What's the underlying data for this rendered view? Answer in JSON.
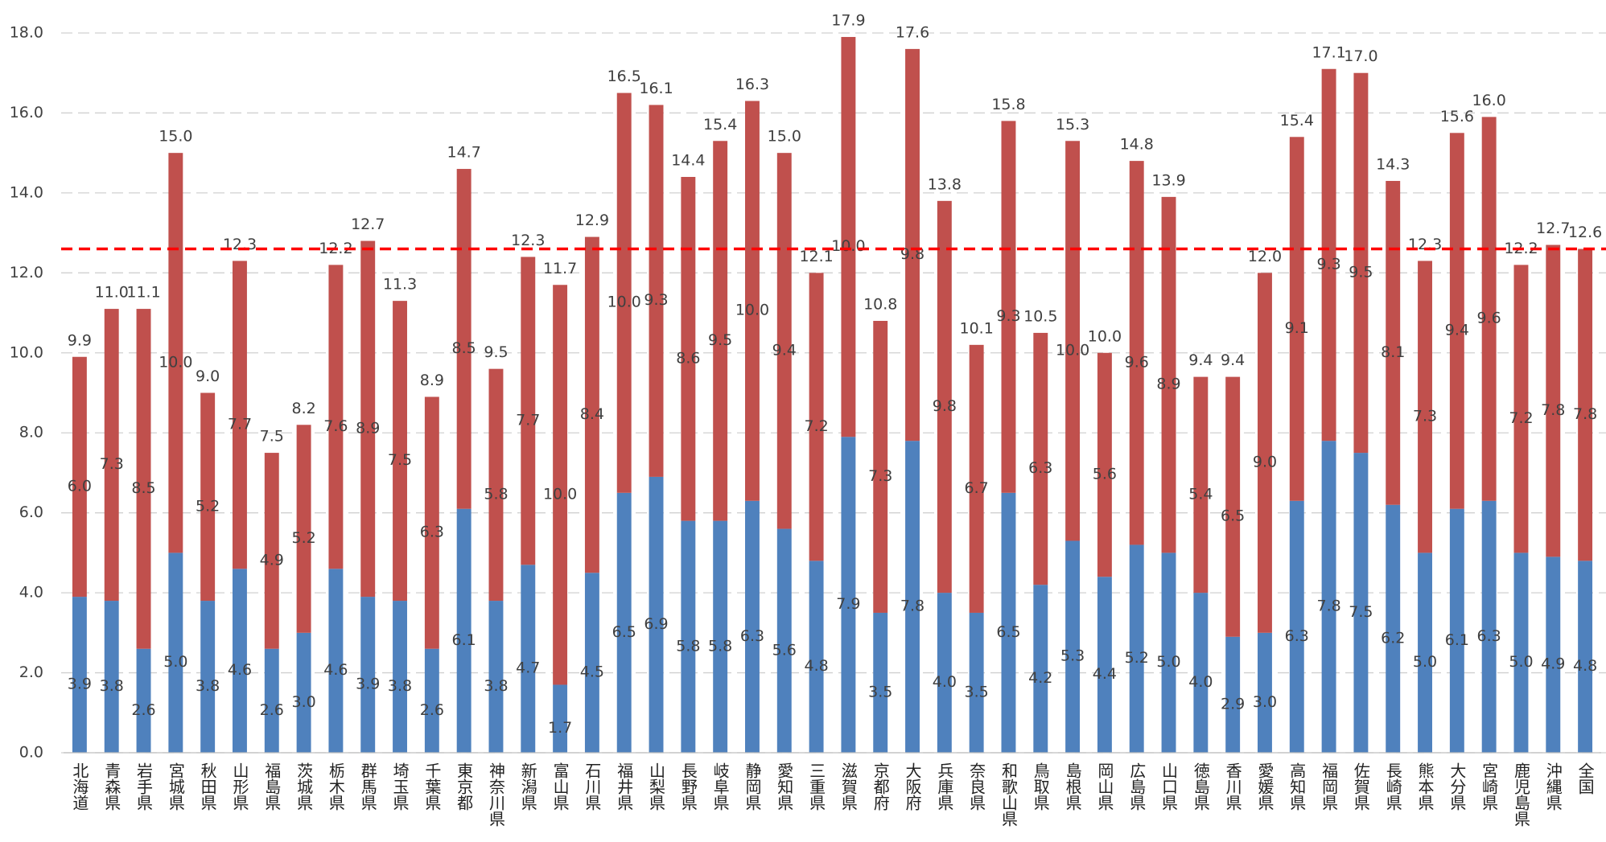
{
  "chart_data": {
    "type": "stacked_bar",
    "categories": [
      "北海道",
      "青森県",
      "岩手県",
      "宮城県",
      "秋田県",
      "山形県",
      "福島県",
      "茨城県",
      "栃木県",
      "群馬県",
      "埼玉県",
      "千葉県",
      "東京都",
      "神奈川県",
      "新潟県",
      "富山県",
      "石川県",
      "福井県",
      "山梨県",
      "長野県",
      "岐阜県",
      "静岡県",
      "愛知県",
      "三重県",
      "滋賀県",
      "京都府",
      "大阪府",
      "兵庫県",
      "奈良県",
      "和歌山県",
      "鳥取県",
      "島根県",
      "岡山県",
      "広島県",
      "山口県",
      "徳島県",
      "香川県",
      "愛媛県",
      "高知県",
      "福岡県",
      "佐賀県",
      "長崎県",
      "熊本県",
      "大分県",
      "宮崎県",
      "鹿児島県",
      "沖縄県",
      "全国"
    ],
    "series": [
      {
        "color": "#4f81bd",
        "values": [
          3.9,
          3.8,
          2.6,
          5.0,
          3.8,
          4.6,
          2.6,
          3.0,
          4.6,
          3.9,
          3.8,
          2.6,
          6.1,
          3.8,
          4.7,
          1.7,
          4.5,
          6.5,
          6.9,
          5.8,
          5.8,
          6.3,
          5.6,
          4.8,
          7.9,
          3.5,
          7.8,
          4.0,
          3.5,
          6.5,
          4.2,
          5.3,
          4.4,
          5.2,
          5.0,
          4.0,
          2.9,
          3.0,
          6.3,
          7.8,
          7.5,
          6.2,
          5.0,
          6.1,
          6.3,
          5.0,
          4.9,
          4.8
        ],
        "value_labels": [
          "3.9",
          "3.8",
          "2.6",
          "5.0",
          "3.8",
          "4.6",
          "2.6",
          "3.0",
          "4.6",
          "3.9",
          "3.8",
          "2.6",
          "6.1",
          "3.8",
          "4.7",
          "1.7",
          "4.5",
          "6.5",
          "6.9",
          "5.8",
          "5.8",
          "6.3",
          "5.6",
          "4.8",
          "7.9",
          "3.5",
          "7.8",
          "4.0",
          "3.5",
          "6.5",
          "4.2",
          "5.3",
          "4.4",
          "5.2",
          "5.0",
          "4.0",
          "2.9",
          "3.0",
          "6.3",
          "7.8",
          "7.5",
          "6.2",
          "5.0",
          "6.1",
          "6.3",
          "5.0",
          "4.9",
          "4.8"
        ]
      },
      {
        "color": "#c0504d",
        "values": [
          6.0,
          7.3,
          8.5,
          10.0,
          5.2,
          7.7,
          4.9,
          5.2,
          7.6,
          8.9,
          7.5,
          6.3,
          8.5,
          5.8,
          7.7,
          10.0,
          8.4,
          10.0,
          9.3,
          8.6,
          9.5,
          10.0,
          9.4,
          7.2,
          10.0,
          7.3,
          9.8,
          9.8,
          6.7,
          9.3,
          6.3,
          10.0,
          5.6,
          9.6,
          8.9,
          5.4,
          6.5,
          9.0,
          9.1,
          9.3,
          9.5,
          8.1,
          7.3,
          9.4,
          9.6,
          7.2,
          7.8,
          7.8
        ],
        "value_labels": [
          "6.0",
          "7.3",
          "8.5",
          "10.0",
          "5.2",
          "7.7",
          "4.9",
          "5.2",
          "7.6",
          "8.9",
          "7.5",
          "6.3",
          "8.5",
          "5.8",
          "7.7",
          "10.0",
          "8.4",
          "10.0",
          "9.3",
          "8.6",
          "9.5",
          "10.0",
          "9.4",
          "7.2",
          "10.0",
          "7.3",
          "9.8",
          "9.8",
          "6.7",
          "9.3",
          "6.3",
          "10.0",
          "5.6",
          "9.6",
          "8.9",
          "5.4",
          "6.5",
          "9.0",
          "9.1",
          "9.3",
          "9.5",
          "8.1",
          "7.3",
          "9.4",
          "9.6",
          "7.2",
          "7.8",
          "7.8"
        ]
      }
    ],
    "total_labels": [
      "9.9",
      "11.0",
      "11.1",
      "15.0",
      "9.0",
      "12.3",
      "7.5",
      "8.2",
      "12.2",
      "12.7",
      "11.3",
      "8.9",
      "14.7",
      "9.5",
      "12.3",
      "11.7",
      "12.9",
      "16.5",
      "16.1",
      "14.4",
      "15.4",
      "16.3",
      "15.0",
      "12.1",
      "17.9",
      "10.8",
      "17.6",
      "13.8",
      "10.1",
      "15.8",
      "10.5",
      "15.3",
      "10.0",
      "14.8",
      "13.9",
      "9.4",
      "9.4",
      "12.0",
      "15.4",
      "17.1",
      "17.0",
      "14.3",
      "12.3",
      "15.6",
      "16.0",
      "12.2",
      "12.7",
      "12.6"
    ],
    "reference_line": {
      "value": 12.6,
      "color": "#ff0000"
    },
    "ylim": [
      0,
      18
    ],
    "yticks": [
      {
        "value": 0,
        "label": "0.0"
      },
      {
        "value": 2,
        "label": "2.0"
      },
      {
        "value": 4,
        "label": "4.0"
      },
      {
        "value": 6,
        "label": "6.0"
      },
      {
        "value": 8,
        "label": "8.0"
      },
      {
        "value": 10,
        "label": "10.0"
      },
      {
        "value": 12,
        "label": "12.0"
      },
      {
        "value": 14,
        "label": "14.0"
      },
      {
        "value": 16,
        "label": "16.0"
      },
      {
        "value": 18,
        "label": "18.0"
      }
    ],
    "grid": true
  }
}
